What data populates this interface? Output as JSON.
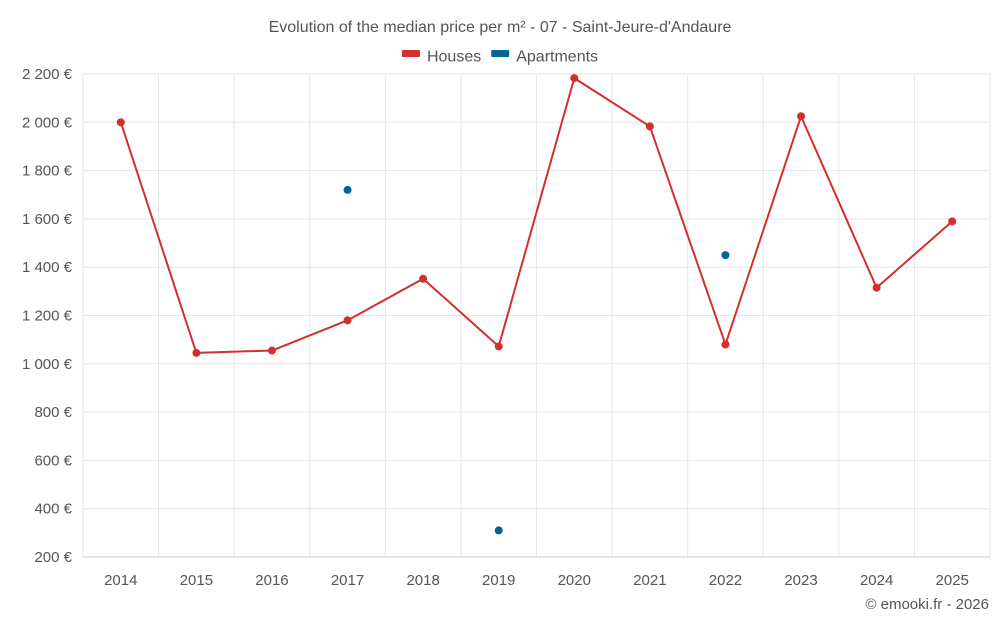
{
  "chart_data": {
    "type": "line",
    "title": "Evolution of the median price per m² - 07 - Saint-Jeure-d'Andaure",
    "categories": [
      "2014",
      "2015",
      "2016",
      "2017",
      "2018",
      "2019",
      "2020",
      "2021",
      "2022",
      "2023",
      "2024",
      "2025"
    ],
    "series": [
      {
        "name": "Houses",
        "color": "#d32f2f",
        "style": "line-markers",
        "values": [
          2000,
          1045,
          1055,
          1180,
          1352,
          1072,
          2183,
          1983,
          1080,
          2025,
          1315,
          1590
        ]
      },
      {
        "name": "Apartments",
        "color": "#03649a",
        "style": "markers",
        "values": [
          null,
          null,
          null,
          1720,
          null,
          310,
          null,
          null,
          1450,
          null,
          null,
          null
        ]
      }
    ],
    "ylim": [
      200,
      2200
    ],
    "yticks": [
      200,
      400,
      600,
      800,
      1000,
      1200,
      1400,
      1600,
      1800,
      2000,
      2200
    ],
    "ytick_labels": [
      "200 €",
      "400 €",
      "600 €",
      "800 €",
      "1 000 €",
      "1 200 €",
      "1 400 €",
      "1 600 €",
      "1 800 €",
      "2 000 €",
      "2 200 €"
    ],
    "grid": true,
    "legend_position": "top-center"
  },
  "credit": "© emooki.fr - 2026"
}
